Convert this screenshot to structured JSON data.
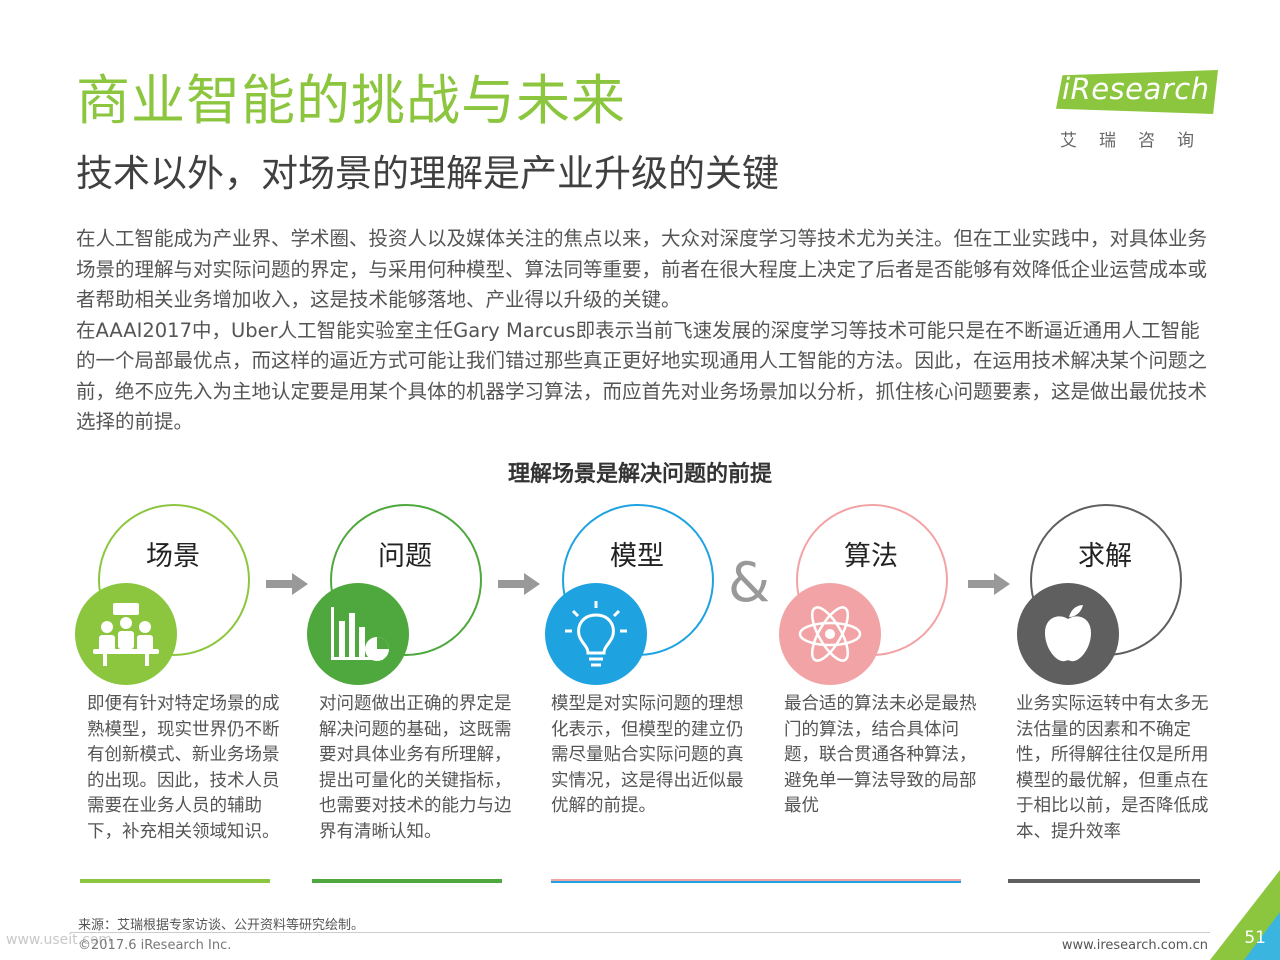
{
  "header": {
    "title": "商业智能的挑战与未来",
    "subtitle": "技术以外，对场景的理解是产业升级的关键"
  },
  "logo": {
    "wordmark": "iResearch",
    "cn_name": "艾瑞咨询"
  },
  "paragraphs": [
    "在人工智能成为产业界、学术圈、投资人以及媒体关注的焦点以来，大众对深度学习等技术尤为关注。但在工业实践中，对具体业务场景的理解与对实际问题的界定，与采用何种模型、算法同等重要，前者在很大程度上决定了后者是否能够有效降低企业运营成本或者帮助相关业务增加收入，这是技术能够落地、产业得以升级的关键。",
    "在AAAI2017中，Uber人工智能实验室主任Gary Marcus即表示当前飞速发展的深度学习等技术可能只是在不断逼近通用人工智能的一个局部最优点，而这样的逼近方式可能让我们错过那些真正更好地实现通用人工智能的方法。因此，在运用技术解决某个问题之前，绝不应先入为主地认定要是用某个具体的机器学习算法，而应首先对业务场景加以分析，抓住核心问题要素，这是做出最优技术选择的前提。"
  ],
  "section_title": "理解场景是解决问题的前提",
  "stages": [
    {
      "label": "场景",
      "icon": "meeting-people-icon",
      "color": "#8cc63f",
      "desc": "即便有针对特定场景的成熟模型，现实世界仍不断有创新模式、新业务场景的出现。因此，技术人员需要在业务人员的辅助下，补充相关领域知识。"
    },
    {
      "label": "问题",
      "icon": "bar-chart-icon",
      "color": "#4fa83d",
      "desc": "对问题做出正确的界定是解决问题的基础，这既需要对具体业务有所理解，提出可量化的关键指标，也需要对技术的能力与边界有清晰认知。"
    },
    {
      "label": "模型",
      "icon": "light-bulb-icon",
      "color": "#1fa3e0",
      "desc": "模型是对实际问题的理想化表示，但模型的建立仍需尽量贴合实际问题的真实情况，这是得出近似最优解的前提。"
    },
    {
      "label": "算法",
      "icon": "atom-icon",
      "color": "#f2a3a6",
      "desc": "最合适的算法未必是最热门的算法，结合具体问题，联合贯通各种算法，避免单一算法导致的局部最优"
    },
    {
      "label": "求解",
      "icon": "apple-icon",
      "color": "#5f5f5f",
      "desc": "业务实际运转中有太多无法估量的因素和不确定性，所得解往往仅是所用模型的最优解，但重点在于相比以前，是否降低成本、提升效率"
    }
  ],
  "ampersand": "&",
  "footer": {
    "source": "来源：艾瑞根据专家访谈、公开资料等研究绘制。",
    "copyright": "©2017.6 iResearch Inc.",
    "url": "www.iresearch.com.cn",
    "page": "51",
    "watermark": "www.useit.com"
  }
}
